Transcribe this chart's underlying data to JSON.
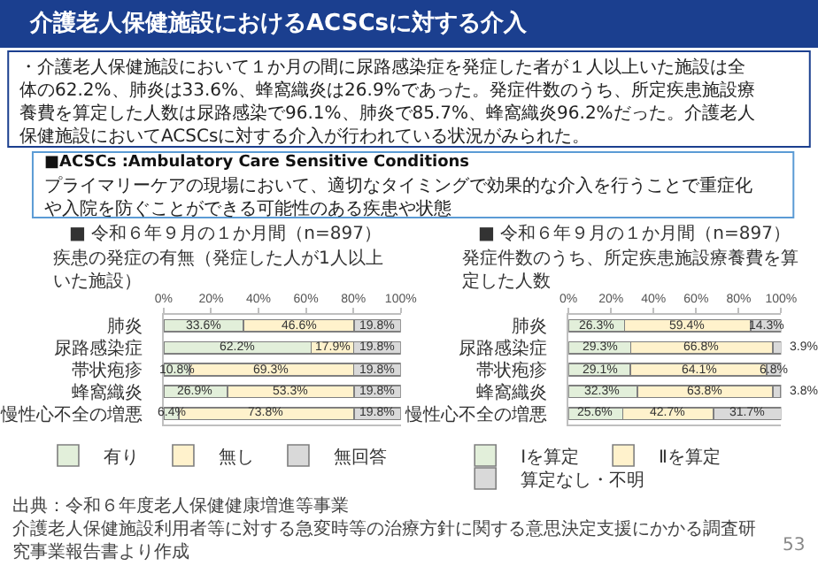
{
  "chart_data": [
    {
      "type": "bar",
      "orientation": "horizontal",
      "stacked": true,
      "title": "■ 令和６年９月の１か月間（n=897）",
      "subtitle": "疾患の発症の有無（発症した人が1人以上いた施設）",
      "categories": [
        "肺炎",
        "尿路感染症",
        "帯状疱疹",
        "蜂窩織炎",
        "慢性心不全の増悪"
      ],
      "series": [
        {
          "name": "有り",
          "color": "#e2efda",
          "values": [
            33.6,
            62.2,
            10.8,
            26.9,
            6.4
          ],
          "value_labels": [
            "33.6%",
            "62.2%",
            "10.8%",
            "26.9%",
            "6.4%"
          ]
        },
        {
          "name": "無し",
          "color": "#fff2cc",
          "values": [
            46.6,
            17.9,
            69.3,
            53.3,
            73.8
          ],
          "value_labels": [
            "46.6%",
            "17.9%",
            "69.3%",
            "53.3%",
            "73.8%"
          ]
        },
        {
          "name": "無回答",
          "color": "#d9d9d9",
          "values": [
            19.8,
            19.8,
            19.8,
            19.8,
            19.8
          ],
          "value_labels": [
            "19.8%",
            "19.8%",
            "19.8%",
            "19.8%",
            "19.8%"
          ]
        }
      ],
      "xlim": [
        0,
        100
      ],
      "xticks": [
        {
          "value": 0,
          "label": "0%"
        },
        {
          "value": 20,
          "label": "20%"
        },
        {
          "value": 40,
          "label": "40%"
        },
        {
          "value": 60,
          "label": "60%"
        },
        {
          "value": 80,
          "label": "80%"
        },
        {
          "value": 100,
          "label": "100%"
        }
      ],
      "legend": "bottom",
      "annotations": [
        "介護老人保健施設におけるACSCsに対する介入",
        "・介護老人保健施設において１か月の間に尿路感染症を発症した者が１人以上いた施設は全体の62.2%、肺炎は33.6%、蜂窩織炎は26.9%であった。発症件数のうち、所定疾患施設療養費を算定した人数は尿路感染で96.1%、肺炎で85.7%、蜂窩織炎96.2%だった。介護老人保健施設においてACSCsに対する介入が行われている状況がみられた。",
        "■ACSCs :Ambulatory Care Sensitive Conditions",
        "プライマリーケアの現場において、適切なタイミングで効果的な介入を行うことで重症化や入院を防ぐことができる可能性のある疾患や状態",
        "出典：令和６年度老人保健健康増進等事業",
        "介護老人保健施設利用者等に対する急変時等の治療方針に関する意思決定支援にかかる調査研究事業報告書より作成",
        "53"
      ]
    },
    {
      "type": "bar",
      "orientation": "horizontal",
      "stacked": true,
      "title": "■ 令和６年９月の１か月間（n=897）",
      "subtitle": "発症件数のうち、所定疾患施設療養費を算定した人数",
      "categories": [
        "肺炎",
        "尿路感染症",
        "帯状疱疹",
        "蜂窩織炎",
        "慢性心不全の増悪"
      ],
      "series": [
        {
          "name": "Ⅰを算定",
          "color": "#e2efda",
          "values": [
            26.3,
            29.3,
            29.1,
            32.3,
            25.6
          ],
          "value_labels": [
            "26.3%",
            "29.3%",
            "29.1%",
            "32.3%",
            "25.6%"
          ]
        },
        {
          "name": "Ⅱを算定",
          "color": "#fff2cc",
          "values": [
            59.4,
            66.8,
            64.1,
            63.8,
            42.7
          ],
          "value_labels": [
            "59.4%",
            "66.8%",
            "64.1%",
            "63.8%",
            "42.7%"
          ]
        },
        {
          "name": "算定なし・不明",
          "color": "#d9d9d9",
          "values": [
            14.3,
            3.9,
            6.8,
            3.8,
            31.7
          ],
          "value_labels": [
            "14.3%",
            "3.9%",
            "6.8%",
            "3.8%",
            "31.7%"
          ]
        }
      ],
      "xlim": [
        0,
        100
      ],
      "xticks": [
        {
          "value": 0,
          "label": "0%"
        },
        {
          "value": 20,
          "label": "20%"
        },
        {
          "value": 40,
          "label": "40%"
        },
        {
          "value": 60,
          "label": "60%"
        },
        {
          "value": 80,
          "label": "80%"
        },
        {
          "value": 100,
          "label": "100%"
        }
      ],
      "legend": "bottom"
    }
  ]
}
